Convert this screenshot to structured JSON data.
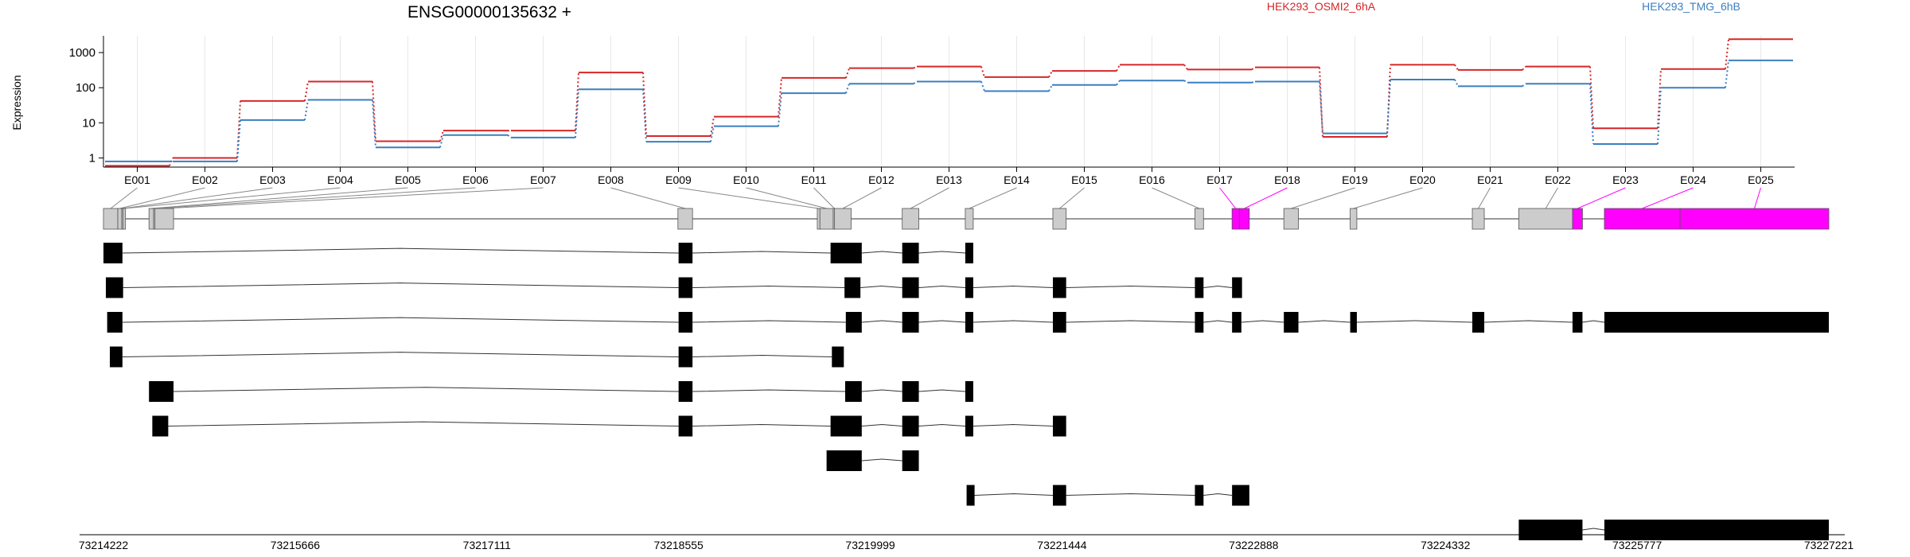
{
  "header": {
    "gene_title": "ENSG00000135632 +",
    "y_axis_label": "Expression"
  },
  "legend": [
    {
      "name": "HEK293_OSMI2_6hA",
      "color": "#d62728"
    },
    {
      "name": "HEK293_TMG_6hB",
      "color": "#3a7fc1"
    }
  ],
  "colors": {
    "series_a": "#d62728",
    "series_b": "#3a7fc1",
    "exon_default": "#cccccc",
    "exon_highlight": "#ff00ff",
    "transcript_exon": "#000000",
    "grid": "#e8e8e8"
  },
  "chart_data": {
    "type": "line",
    "subtype": "step",
    "title": "ENSG00000135632 +",
    "xlabel": "",
    "ylabel": "Expression",
    "y_scale": "log",
    "y_ticks": [
      1,
      10,
      100,
      1000
    ],
    "y_tick_labels": [
      "1",
      "10",
      "100",
      "1000"
    ],
    "ylim": [
      0.55,
      3000
    ],
    "grid": "vertical",
    "legend_placement": "top",
    "categories": [
      "E001",
      "E002",
      "E003",
      "E004",
      "E005",
      "E006",
      "E007",
      "E008",
      "E009",
      "E010",
      "E011",
      "E012",
      "E013",
      "E014",
      "E015",
      "E016",
      "E017",
      "E018",
      "E019",
      "E020",
      "E021",
      "E022",
      "E023",
      "E024",
      "E025"
    ],
    "series": [
      {
        "name": "HEK293_OSMI2_6hA",
        "color": "#d62728",
        "values": [
          0.6,
          1.0,
          42,
          150,
          3.0,
          6.0,
          6.0,
          270,
          4.2,
          15,
          190,
          360,
          400,
          200,
          300,
          450,
          330,
          380,
          4.0,
          450,
          320,
          400,
          7.0,
          340,
          2400
        ]
      },
      {
        "name": "HEK293_TMG_6hB",
        "color": "#3a7fc1",
        "values": [
          0.8,
          0.8,
          12,
          45,
          2.0,
          4.5,
          3.8,
          90,
          2.9,
          8,
          70,
          130,
          150,
          80,
          120,
          160,
          140,
          150,
          5.0,
          170,
          110,
          130,
          2.5,
          100,
          600
        ]
      }
    ],
    "genomic_axis": {
      "ticks": [
        "73214222",
        "73215666",
        "73217111",
        "73218555",
        "73219999",
        "73221444",
        "73222888",
        "73224332",
        "73225777",
        "73227221"
      ],
      "start": 73214222,
      "end": 73227221
    },
    "gene_model": {
      "exons": [
        {
          "id": "E001",
          "start": 73214222,
          "end": 73214330,
          "highlight": false
        },
        {
          "id": "E002",
          "start": 73214330,
          "end": 73214360,
          "highlight": false
        },
        {
          "id": "E003",
          "start": 73214360,
          "end": 73214370,
          "highlight": false
        },
        {
          "id": "E004",
          "start": 73214370,
          "end": 73214380,
          "highlight": false
        },
        {
          "id": "E005",
          "start": 73214565,
          "end": 73214600,
          "highlight": false
        },
        {
          "id": "E006",
          "start": 73214600,
          "end": 73214610,
          "highlight": false
        },
        {
          "id": "E007",
          "start": 73214610,
          "end": 73214750,
          "highlight": false
        },
        {
          "id": "E008",
          "start": 73218550,
          "end": 73218660,
          "highlight": false
        },
        {
          "id": "E009",
          "start": 73219600,
          "end": 73219620,
          "highlight": false
        },
        {
          "id": "E010",
          "start": 73219620,
          "end": 73219720,
          "highlight": false
        },
        {
          "id": "E011",
          "start": 73219720,
          "end": 73219730,
          "highlight": false
        },
        {
          "id": "E012",
          "start": 73219730,
          "end": 73219855,
          "highlight": false
        },
        {
          "id": "E013",
          "start": 73220240,
          "end": 73220365,
          "highlight": false
        },
        {
          "id": "E014",
          "start": 73220715,
          "end": 73220775,
          "highlight": false
        },
        {
          "id": "E015",
          "start": 73221375,
          "end": 73221475,
          "highlight": false
        },
        {
          "id": "E016",
          "start": 73222445,
          "end": 73222510,
          "highlight": false
        },
        {
          "id": "E017",
          "start": 73222725,
          "end": 73222780,
          "highlight": true
        },
        {
          "id": "E018",
          "start": 73222780,
          "end": 73222855,
          "highlight": true
        },
        {
          "id": "E019",
          "start": 73223115,
          "end": 73223225,
          "highlight": false
        },
        {
          "id": "E020",
          "start": 73223615,
          "end": 73223665,
          "highlight": false
        },
        {
          "id": "E021",
          "start": 73224535,
          "end": 73224625,
          "highlight": false
        },
        {
          "id": "E022",
          "start": 73224885,
          "end": 73225290,
          "highlight": false
        },
        {
          "id": "E023",
          "start": 73225290,
          "end": 73225365,
          "highlight": true
        },
        {
          "id": "E024",
          "start": 73225530,
          "end": 73226100,
          "highlight": true
        },
        {
          "id": "E025",
          "start": 73226100,
          "end": 73227221,
          "highlight": true
        }
      ]
    },
    "transcripts": [
      {
        "exons": [
          [
            73214222,
            73214365
          ],
          [
            73218555,
            73218660
          ],
          [
            73219700,
            73219935
          ],
          [
            73220240,
            73220365
          ],
          [
            73220715,
            73220775
          ]
        ]
      },
      {
        "exons": [
          [
            73214240,
            73214370
          ],
          [
            73218555,
            73218660
          ],
          [
            73219805,
            73219925
          ],
          [
            73220240,
            73220365
          ],
          [
            73220715,
            73220775
          ],
          [
            73221375,
            73221475
          ],
          [
            73222445,
            73222510
          ],
          [
            73222725,
            73222800
          ]
        ]
      },
      {
        "exons": [
          [
            73214250,
            73214365
          ],
          [
            73218555,
            73218660
          ],
          [
            73219815,
            73219935
          ],
          [
            73220240,
            73220365
          ],
          [
            73220715,
            73220775
          ],
          [
            73221375,
            73221475
          ],
          [
            73222445,
            73222510
          ],
          [
            73222725,
            73222795
          ],
          [
            73223115,
            73223225
          ],
          [
            73223615,
            73223665
          ],
          [
            73224535,
            73224625
          ],
          [
            73225290,
            73225365
          ],
          [
            73225530,
            73227221
          ]
        ]
      },
      {
        "exons": [
          [
            73214270,
            73214365
          ],
          [
            73218555,
            73218660
          ],
          [
            73219710,
            73219800
          ]
        ]
      },
      {
        "exons": [
          [
            73214565,
            73214750
          ],
          [
            73218555,
            73218660
          ],
          [
            73219810,
            73219935
          ],
          [
            73220240,
            73220365
          ],
          [
            73220715,
            73220775
          ]
        ]
      },
      {
        "exons": [
          [
            73214590,
            73214710
          ],
          [
            73218555,
            73218660
          ],
          [
            73219700,
            73219935
          ],
          [
            73220240,
            73220365
          ],
          [
            73220715,
            73220775
          ],
          [
            73221375,
            73221475
          ]
        ]
      },
      {
        "exons": [
          [
            73219670,
            73219935
          ],
          [
            73220240,
            73220365
          ]
        ]
      },
      {
        "exons": [
          [
            73220725,
            73220785
          ],
          [
            73221375,
            73221475
          ],
          [
            73222445,
            73222510
          ],
          [
            73222725,
            73222855
          ]
        ]
      },
      {
        "exons": [
          [
            73224885,
            73225365
          ],
          [
            73225530,
            73227221
          ]
        ]
      }
    ]
  }
}
